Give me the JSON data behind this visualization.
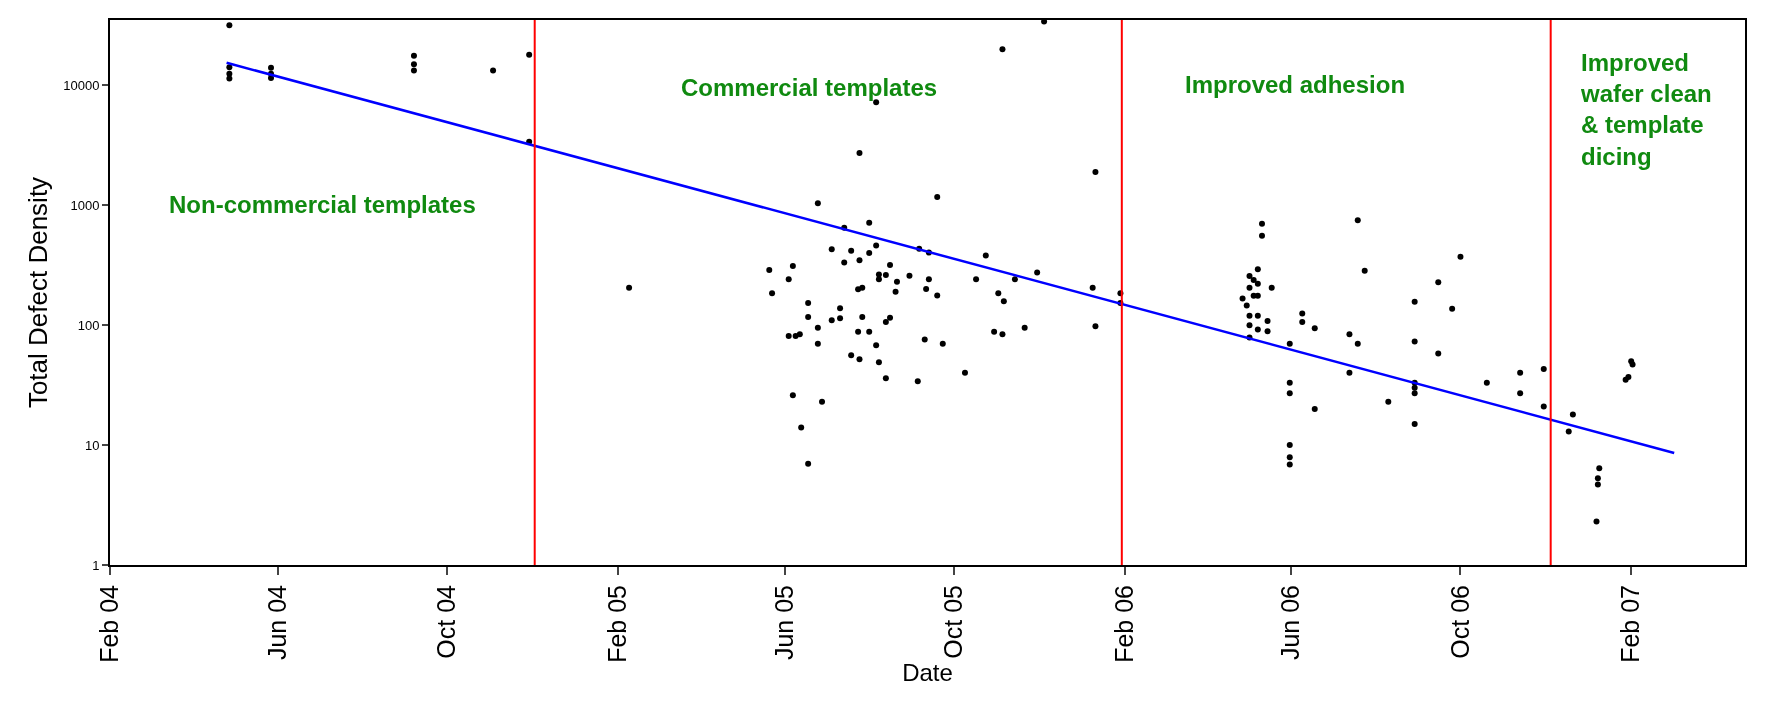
{
  "chart_data": {
    "type": "scatter",
    "xlabel": "Date",
    "ylabel": "Total Defect Density",
    "log": "y",
    "grid": false,
    "xlim": [
      "2004-02-01",
      "2007-04-24"
    ],
    "xticks": [
      {
        "value": "2004-02-01",
        "label": "Feb 04"
      },
      {
        "value": "2004-06-01",
        "label": "Jun 04"
      },
      {
        "value": "2004-10-01",
        "label": "Oct 04"
      },
      {
        "value": "2005-02-01",
        "label": "Feb 05"
      },
      {
        "value": "2005-06-01",
        "label": "Jun 05"
      },
      {
        "value": "2005-10-01",
        "label": "Oct 05"
      },
      {
        "value": "2006-02-01",
        "label": "Feb 06"
      },
      {
        "value": "2006-06-01",
        "label": "Jun 06"
      },
      {
        "value": "2006-10-01",
        "label": "Oct 06"
      },
      {
        "value": "2007-02-01",
        "label": "Feb 07"
      }
    ],
    "ylim": [
      1,
      35000
    ],
    "yticks": [
      1,
      10,
      100,
      1000,
      10000
    ],
    "series": [
      {
        "marker": "circle",
        "color": "#000000",
        "x": [
          "2004-04-27",
          "2004-04-27",
          "2004-04-27",
          "2004-04-27",
          "2004-05-27",
          "2004-05-27",
          "2004-05-27",
          "2004-09-07",
          "2004-09-07",
          "2004-09-07",
          "2004-11-03",
          "2004-11-29",
          "2004-11-29",
          "2005-02-09",
          "2005-07-25",
          "2006-01-11",
          "2005-09-19",
          "2005-06-25",
          "2005-08-01",
          "2005-07-14",
          "2005-08-06",
          "2005-07-05",
          "2005-09-06",
          "2005-09-13",
          "2005-07-19",
          "2005-08-01",
          "2005-07-25",
          "2005-10-24",
          "2005-07-14",
          "2005-06-07",
          "2005-08-16",
          "2005-05-21",
          "2005-11-30",
          "2005-08-08",
          "2005-08-13",
          "2005-08-30",
          "2005-08-08",
          "2005-06-04",
          "2005-09-13",
          "2005-10-17",
          "2005-11-14",
          "2005-08-21",
          "2005-07-27",
          "2005-07-24",
          "2005-09-11",
          "2006-01-09",
          "2005-08-20",
          "2005-05-23",
          "2005-09-19",
          "2005-11-02",
          "2005-11-06",
          "2006-01-29",
          "2006-01-29",
          "2005-06-18",
          "2005-07-11",
          "2005-06-18",
          "2005-07-05",
          "2005-07-11",
          "2005-07-27",
          "2005-08-16",
          "2005-08-13",
          "2006-01-11",
          "2005-06-25",
          "2005-11-21",
          "2005-07-24",
          "2005-08-01",
          "2005-10-30",
          "2005-11-05",
          "2005-06-04",
          "2005-06-09",
          "2005-06-12",
          "2005-06-25",
          "2005-08-06",
          "2005-09-10",
          "2005-09-23",
          "2005-07-19",
          "2005-07-25",
          "2005-08-08",
          "2005-08-13",
          "2005-09-05",
          "2005-10-09",
          "2005-06-07",
          "2005-06-28",
          "2005-06-13",
          "2005-06-18",
          "2005-08-06",
          "2005-11-05",
          "2005-12-05",
          "2006-05-11",
          "2006-05-11",
          "2006-07-19",
          "2006-10-01",
          "2006-07-24",
          "2006-05-08",
          "2006-05-02",
          "2006-05-05",
          "2006-05-08",
          "2006-05-18",
          "2006-05-02",
          "2006-05-05",
          "2006-05-08",
          "2006-04-27",
          "2006-04-30",
          "2006-05-02",
          "2006-05-02",
          "2006-05-02",
          "2006-05-08",
          "2006-05-08",
          "2006-05-15",
          "2006-05-15",
          "2006-09-15",
          "2006-09-25",
          "2006-08-29",
          "2006-06-09",
          "2006-06-09",
          "2006-06-18",
          "2006-05-31",
          "2006-07-13",
          "2006-07-19",
          "2006-08-29",
          "2006-09-15",
          "2006-07-13",
          "2006-05-31",
          "2006-05-31",
          "2006-08-29",
          "2006-08-29",
          "2006-08-29",
          "2006-08-10",
          "2006-06-18",
          "2006-08-29",
          "2006-05-31",
          "2006-05-31",
          "2006-05-31",
          "2006-10-20",
          "2006-11-13",
          "2006-11-13",
          "2006-11-30",
          "2006-11-30",
          "2006-12-21",
          "2006-12-18",
          "2007-01-09",
          "2007-01-08",
          "2007-01-08",
          "2007-01-07",
          "2007-02-01",
          "2007-02-02",
          "2007-01-30",
          "2007-01-28"
        ],
        "values": [
          31600,
          14100,
          12500,
          11400,
          14000,
          12500,
          11500,
          17600,
          15000,
          13300,
          13300,
          18000,
          3380,
          205,
          2720,
          1890,
          1170,
          1040,
          714,
          649,
          461,
          430,
          434,
          403,
          417,
          400,
          347,
          381,
          332,
          311,
          317,
          288,
          275,
          264,
          262,
          258,
          241,
          241,
          241,
          241,
          241,
          230,
          205,
          199,
          200,
          205,
          190,
          184,
          177,
          184,
          158,
          184,
          153,
          153,
          138,
          117,
          110,
          114,
          117,
          115,
          106,
          98,
          95,
          95,
          88,
          88,
          88,
          84,
          81,
          81,
          84,
          70,
          68,
          76,
          70,
          56,
          52,
          49,
          36,
          34,
          40,
          26,
          23,
          14,
          7,
          7200,
          20000,
          34000,
          699,
          556,
          748,
          372,
          284,
          292,
          257,
          238,
          221,
          205,
          205,
          176,
          176,
          167,
          146,
          120,
          100,
          79,
          120,
          92,
          108,
          89,
          228,
          137,
          157,
          125,
          106,
          94,
          70,
          84,
          70,
          73,
          58,
          40,
          33,
          27,
          33,
          30,
          27,
          23,
          20,
          15,
          10,
          7.9,
          6.9,
          33,
          40,
          27,
          43,
          21,
          18,
          13,
          6.4,
          5.3,
          4.7,
          2.3,
          50,
          47,
          37,
          35
        ]
      },
      {
        "type": "line",
        "color": "#0000ff",
        "x": [
          "2004-04-25",
          "2007-03-04"
        ],
        "values": [
          15400,
          8.6
        ]
      }
    ],
    "ref_lines": [
      {
        "axis": "x",
        "value": "2004-12-03",
        "color": "#ff0000"
      },
      {
        "axis": "x",
        "value": "2006-01-30",
        "color": "#ff0000"
      },
      {
        "axis": "x",
        "value": "2006-12-05",
        "color": "#ff0000"
      }
    ],
    "annotations": [
      "Non-commercial templates",
      "Commercial templates",
      "Improved adhesion",
      "Improved\nwafer clean\n& template\ndicing"
    ]
  }
}
